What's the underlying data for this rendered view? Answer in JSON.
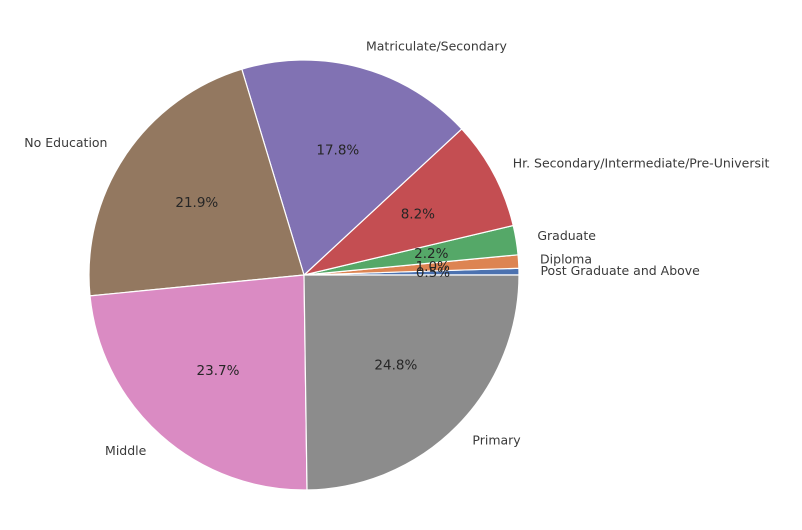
{
  "chart_data": {
    "type": "pie",
    "title": "",
    "start_angle_deg": 0,
    "direction": "counterclockwise",
    "slices": [
      {
        "label": "Post Graduate and Above",
        "value": 0.5,
        "pct_label": "0.5%",
        "color": "#4c72b0"
      },
      {
        "label": "Diploma",
        "value": 1.0,
        "pct_label": "1.0%",
        "color": "#dd8452"
      },
      {
        "label": "Graduate",
        "value": 2.2,
        "pct_label": "2.2%",
        "color": "#55a868"
      },
      {
        "label": "Hr. Secondary/Intermediate/Pre-Universit",
        "value": 8.2,
        "pct_label": "8.2%",
        "color": "#c44e52"
      },
      {
        "label": "Matriculate/Secondary",
        "value": 17.8,
        "pct_label": "17.8%",
        "color": "#8172b3"
      },
      {
        "label": "No Education",
        "value": 21.9,
        "pct_label": "21.9%",
        "color": "#937860"
      },
      {
        "label": "Middle",
        "value": 23.7,
        "pct_label": "23.7%",
        "color": "#da8bc3"
      },
      {
        "label": "Primary",
        "value": 24.8,
        "pct_label": "24.8%",
        "color": "#8c8c8c"
      }
    ]
  }
}
